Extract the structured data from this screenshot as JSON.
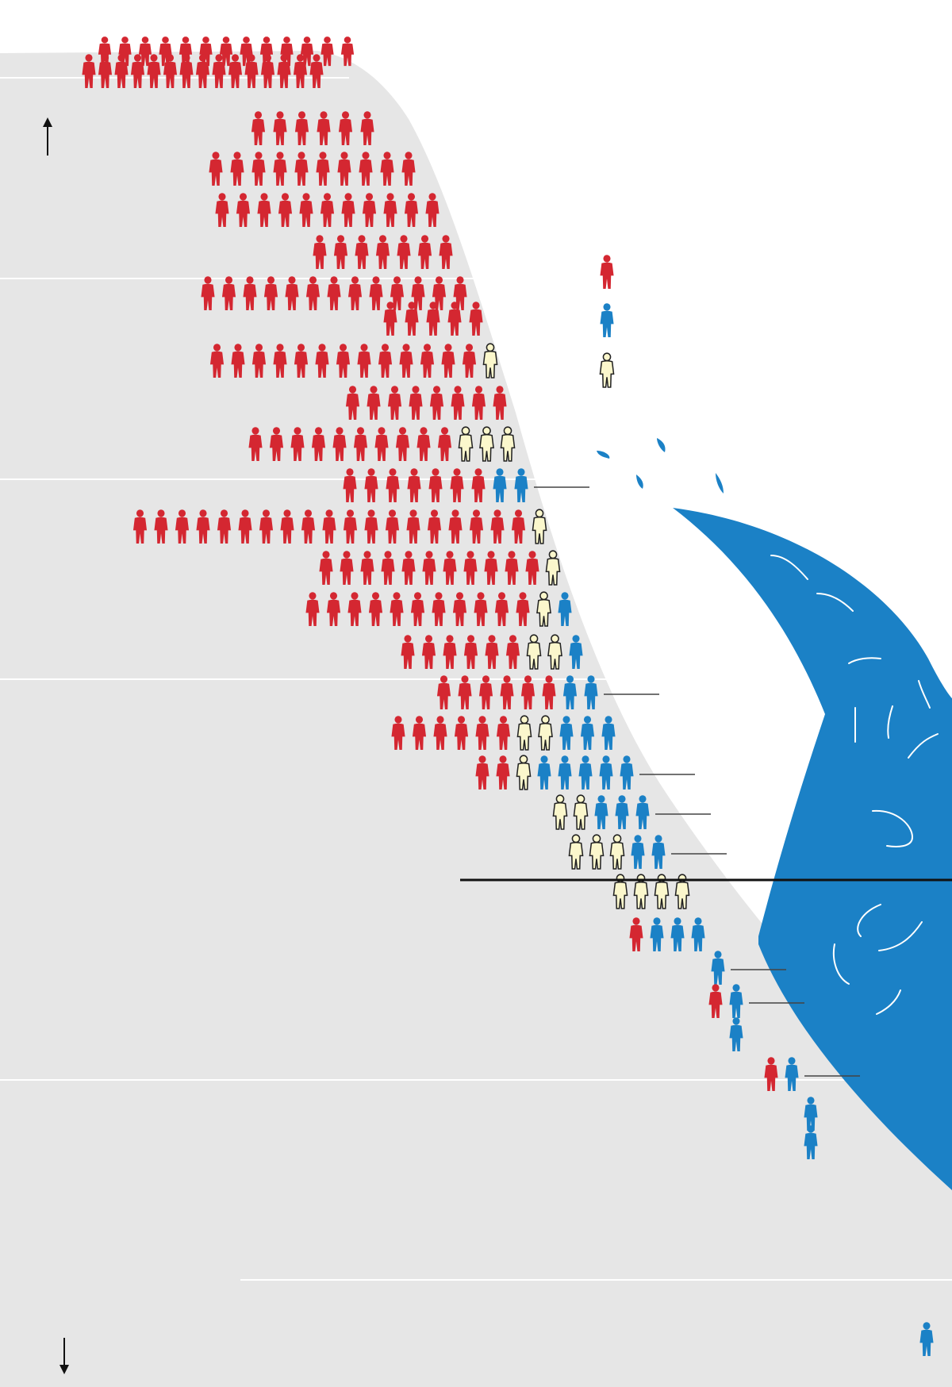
{
  "colors": {
    "background": "#ffffff",
    "land": "#e6e6e6",
    "gridline": "#ffffff",
    "republican": "#d42731",
    "democrat": "#1b81c6",
    "independent": "#fbf7cc",
    "wave": "#1b81c6",
    "wave_strokes": "#ffffff",
    "divider": "#111111",
    "leader": "#444444"
  },
  "icons": {
    "up_arrow": "arrow-up-icon",
    "down_arrow": "arrow-down-icon",
    "person": "person-icon"
  },
  "chart_data": {
    "type": "pictogram",
    "title": "",
    "xlabel": "",
    "ylabel": "",
    "legend": {
      "placement": "right",
      "entries": [
        {
          "party": "republican",
          "label": ""
        },
        {
          "party": "democrat",
          "label": ""
        },
        {
          "party": "independent",
          "label": ""
        }
      ]
    },
    "rows": [
      {
        "republican": 28,
        "democrat": 0,
        "independent": 0
      },
      {
        "republican": 6,
        "democrat": 0,
        "independent": 0
      },
      {
        "republican": 10,
        "democrat": 0,
        "independent": 0
      },
      {
        "republican": 11,
        "democrat": 0,
        "independent": 0
      },
      {
        "republican": 7,
        "democrat": 0,
        "independent": 0
      },
      {
        "republican": 13,
        "democrat": 0,
        "independent": 0
      },
      {
        "republican": 5,
        "democrat": 0,
        "independent": 0
      },
      {
        "republican": 13,
        "democrat": 0,
        "independent": 1
      },
      {
        "republican": 8,
        "democrat": 0,
        "independent": 0
      },
      {
        "republican": 10,
        "democrat": 0,
        "independent": 3
      },
      {
        "republican": 7,
        "democrat": 2,
        "independent": 0
      },
      {
        "republican": 19,
        "democrat": 0,
        "independent": 1
      },
      {
        "republican": 11,
        "democrat": 0,
        "independent": 1
      },
      {
        "republican": 11,
        "democrat": 1,
        "independent": 1
      },
      {
        "republican": 6,
        "democrat": 1,
        "independent": 2
      },
      {
        "republican": 6,
        "democrat": 2,
        "independent": 0
      },
      {
        "republican": 6,
        "democrat": 3,
        "independent": 2
      },
      {
        "republican": 2,
        "democrat": 5,
        "independent": 1
      },
      {
        "republican": 0,
        "democrat": 3,
        "independent": 2
      },
      {
        "republican": 0,
        "democrat": 2,
        "independent": 3
      },
      {
        "republican": 0,
        "democrat": 0,
        "independent": 4
      },
      {
        "republican": 1,
        "democrat": 3,
        "independent": 0
      },
      {
        "republican": 0,
        "democrat": 1,
        "independent": 0
      },
      {
        "republican": 1,
        "democrat": 1,
        "independent": 0
      },
      {
        "republican": 0,
        "democrat": 1,
        "independent": 0
      },
      {
        "republican": 1,
        "democrat": 1,
        "independent": 0
      },
      {
        "republican": 0,
        "democrat": 1,
        "independent": 0
      },
      {
        "republican": 0,
        "democrat": 1,
        "independent": 0
      }
    ],
    "annotated_rows": [
      10,
      15,
      17,
      18,
      19,
      22,
      23,
      25
    ],
    "divider_after_row": 19
  }
}
